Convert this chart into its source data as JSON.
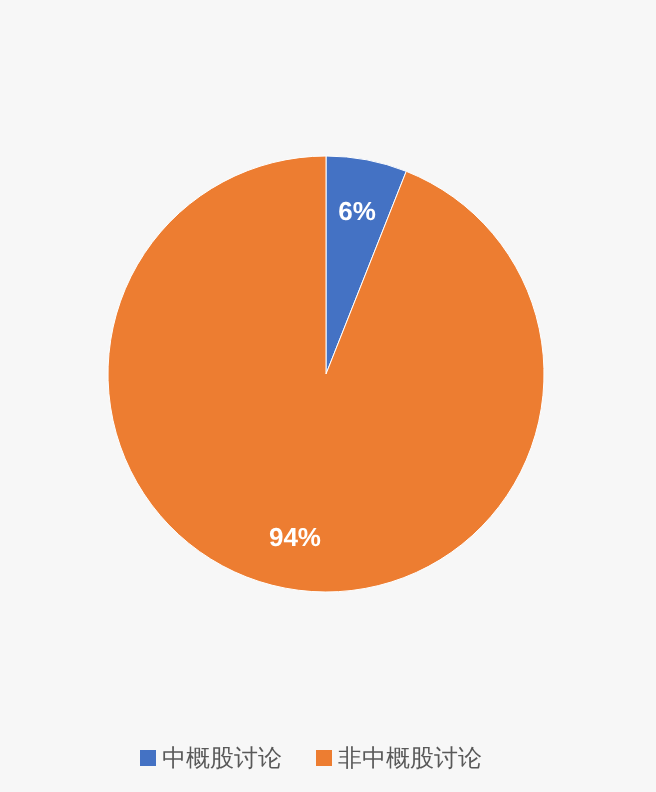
{
  "chart_data": {
    "type": "pie",
    "categories": [
      "中概股讨论",
      "非中概股讨论"
    ],
    "values": [
      6,
      94
    ],
    "colors": [
      "#4472c4",
      "#ed7d31"
    ],
    "value_labels": [
      "6%",
      "94%"
    ],
    "legend": "bottom"
  }
}
